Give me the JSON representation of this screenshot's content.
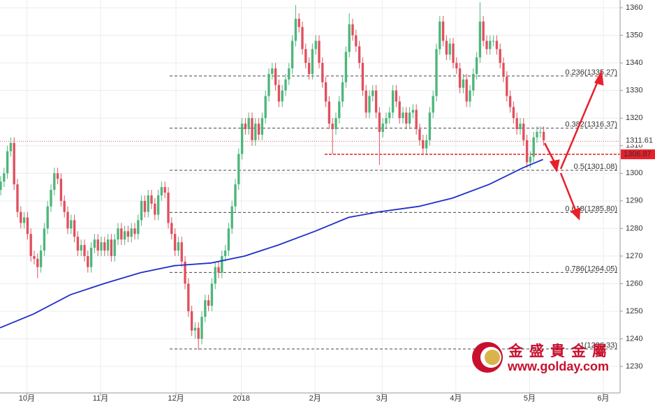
{
  "chart_data": {
    "type": "candlestick",
    "up_color": "#4db67a",
    "down_color": "#e0505e",
    "xlim": [
      0,
      185
    ],
    "xticks": [
      {
        "value": 8,
        "label": "10月"
      },
      {
        "value": 30,
        "label": "11月"
      },
      {
        "value": 52.5,
        "label": "12月"
      },
      {
        "value": 72,
        "label": "2018"
      },
      {
        "value": 94,
        "label": "2月"
      },
      {
        "value": 114,
        "label": "3月"
      },
      {
        "value": 136,
        "label": "4月"
      },
      {
        "value": 158,
        "label": "5月"
      },
      {
        "value": 180,
        "label": "6月"
      }
    ],
    "ylim": [
      1220.4,
      1362.8
    ],
    "yticks": [
      1230,
      1240,
      1250,
      1260,
      1270,
      1280,
      1290,
      1300,
      1310,
      1320,
      1330,
      1340,
      1350,
      1360
    ],
    "grid": true,
    "open": [
      1294,
      1297,
      1300,
      1308,
      1311,
      1296,
      1286,
      1282,
      1284,
      1278,
      1270,
      1269,
      1266,
      1272,
      1280,
      1288,
      1294,
      1300,
      1298,
      1290,
      1286,
      1280,
      1283,
      1277,
      1272,
      1274,
      1270,
      1266,
      1273,
      1276,
      1272,
      1275,
      1272,
      1276,
      1270,
      1276,
      1280,
      1276,
      1279,
      1277,
      1280,
      1278,
      1283,
      1290,
      1286,
      1292,
      1289,
      1285,
      1292,
      1295,
      1293,
      1282,
      1278,
      1272,
      1275,
      1268,
      1260,
      1250,
      1243,
      1244,
      1240,
      1248,
      1254,
      1252,
      1260,
      1266,
      1264,
      1270,
      1272,
      1280,
      1288,
      1296,
      1307,
      1318,
      1316,
      1320,
      1312,
      1318,
      1314,
      1320,
      1328,
      1336,
      1338,
      1332,
      1326,
      1330,
      1334,
      1338,
      1348,
      1356,
      1353,
      1345,
      1340,
      1336,
      1345,
      1348,
      1340,
      1333,
      1326,
      1318,
      1316,
      1320,
      1326,
      1333,
      1344,
      1354,
      1350,
      1346,
      1340,
      1330,
      1322,
      1328,
      1330,
      1322,
      1315,
      1318,
      1320,
      1322,
      1330,
      1326,
      1320,
      1322,
      1318,
      1322,
      1323,
      1316,
      1312,
      1309,
      1312,
      1322,
      1328,
      1345,
      1355,
      1348,
      1343,
      1347,
      1340,
      1338,
      1331,
      1334,
      1326,
      1330,
      1336,
      1342,
      1355,
      1348,
      1345,
      1348,
      1348,
      1345,
      1340,
      1335,
      1328,
      1324,
      1320,
      1316,
      1318,
      1312,
      1304,
      1306,
      1313,
      1315,
      1315
    ],
    "high": [
      1299,
      1302,
      1310,
      1313,
      1313,
      1298,
      1288,
      1286,
      1286,
      1280,
      1272,
      1271,
      1274,
      1282,
      1290,
      1296,
      1302,
      1302,
      1300,
      1292,
      1288,
      1285,
      1285,
      1279,
      1276,
      1276,
      1272,
      1275,
      1278,
      1278,
      1277,
      1277,
      1278,
      1278,
      1278,
      1282,
      1282,
      1281,
      1281,
      1282,
      1282,
      1285,
      1292,
      1292,
      1294,
      1294,
      1291,
      1294,
      1297,
      1297,
      1295,
      1284,
      1280,
      1277,
      1277,
      1270,
      1262,
      1252,
      1246,
      1246,
      1250,
      1256,
      1256,
      1262,
      1268,
      1268,
      1272,
      1274,
      1282,
      1290,
      1298,
      1309,
      1320,
      1320,
      1322,
      1322,
      1320,
      1320,
      1322,
      1330,
      1338,
      1340,
      1340,
      1334,
      1332,
      1336,
      1340,
      1350,
      1361,
      1358,
      1355,
      1347,
      1342,
      1347,
      1350,
      1350,
      1342,
      1335,
      1328,
      1320,
      1322,
      1328,
      1335,
      1346,
      1358,
      1356,
      1352,
      1348,
      1342,
      1332,
      1330,
      1332,
      1332,
      1324,
      1320,
      1322,
      1324,
      1332,
      1332,
      1328,
      1324,
      1324,
      1324,
      1325,
      1325,
      1318,
      1314,
      1314,
      1324,
      1330,
      1347,
      1357,
      1357,
      1350,
      1349,
      1349,
      1342,
      1340,
      1336,
      1336,
      1332,
      1338,
      1344,
      1362,
      1357,
      1350,
      1350,
      1350,
      1350,
      1347,
      1342,
      1337,
      1330,
      1326,
      1322,
      1320,
      1320,
      1314,
      1308,
      1315,
      1317,
      1317,
      1317
    ],
    "low": [
      1292,
      1295,
      1298,
      1306,
      1294,
      1284,
      1280,
      1280,
      1276,
      1268,
      1267,
      1262,
      1264,
      1270,
      1278,
      1286,
      1292,
      1296,
      1288,
      1284,
      1278,
      1278,
      1275,
      1270,
      1270,
      1268,
      1264,
      1264,
      1271,
      1270,
      1270,
      1270,
      1270,
      1268,
      1268,
      1274,
      1274,
      1274,
      1275,
      1275,
      1276,
      1276,
      1281,
      1284,
      1284,
      1287,
      1283,
      1283,
      1290,
      1291,
      1280,
      1276,
      1270,
      1270,
      1266,
      1258,
      1248,
      1241,
      1240,
      1236,
      1238,
      1246,
      1250,
      1250,
      1258,
      1262,
      1262,
      1268,
      1270,
      1278,
      1286,
      1294,
      1305,
      1314,
      1314,
      1310,
      1310,
      1312,
      1312,
      1318,
      1326,
      1334,
      1330,
      1324,
      1324,
      1328,
      1332,
      1336,
      1346,
      1351,
      1343,
      1338,
      1334,
      1334,
      1343,
      1338,
      1331,
      1324,
      1316,
      1307,
      1314,
      1318,
      1324,
      1331,
      1342,
      1348,
      1344,
      1338,
      1328,
      1320,
      1320,
      1326,
      1320,
      1303,
      1313,
      1316,
      1318,
      1320,
      1324,
      1318,
      1318,
      1316,
      1316,
      1320,
      1314,
      1310,
      1307,
      1307,
      1310,
      1320,
      1326,
      1343,
      1346,
      1341,
      1341,
      1338,
      1336,
      1329,
      1329,
      1324,
      1324,
      1328,
      1334,
      1340,
      1346,
      1343,
      1343,
      1346,
      1343,
      1338,
      1333,
      1326,
      1322,
      1318,
      1314,
      1314,
      1310,
      1302,
      1302,
      1304,
      1311,
      1313,
      1310
    ],
    "close": [
      1297,
      1300,
      1308,
      1311,
      1296,
      1286,
      1282,
      1284,
      1278,
      1270,
      1269,
      1266,
      1272,
      1280,
      1288,
      1294,
      1300,
      1298,
      1290,
      1286,
      1280,
      1283,
      1277,
      1272,
      1274,
      1270,
      1266,
      1273,
      1276,
      1272,
      1275,
      1272,
      1276,
      1270,
      1276,
      1280,
      1276,
      1279,
      1277,
      1280,
      1278,
      1283,
      1290,
      1286,
      1292,
      1289,
      1285,
      1292,
      1295,
      1293,
      1282,
      1278,
      1272,
      1275,
      1268,
      1260,
      1250,
      1243,
      1244,
      1240,
      1248,
      1254,
      1252,
      1260,
      1266,
      1264,
      1270,
      1272,
      1280,
      1288,
      1296,
      1307,
      1318,
      1316,
      1320,
      1312,
      1318,
      1314,
      1320,
      1328,
      1336,
      1338,
      1332,
      1326,
      1330,
      1334,
      1338,
      1348,
      1356,
      1353,
      1345,
      1340,
      1336,
      1345,
      1348,
      1340,
      1333,
      1326,
      1318,
      1316,
      1320,
      1326,
      1333,
      1344,
      1354,
      1350,
      1346,
      1340,
      1330,
      1322,
      1328,
      1330,
      1322,
      1315,
      1318,
      1320,
      1322,
      1330,
      1326,
      1320,
      1322,
      1318,
      1322,
      1323,
      1316,
      1312,
      1309,
      1312,
      1322,
      1328,
      1345,
      1355,
      1348,
      1343,
      1347,
      1340,
      1338,
      1331,
      1334,
      1326,
      1330,
      1336,
      1342,
      1355,
      1348,
      1345,
      1348,
      1348,
      1345,
      1340,
      1335,
      1328,
      1324,
      1320,
      1316,
      1318,
      1312,
      1304,
      1306,
      1313,
      1315,
      1315,
      1312
    ],
    "ma": {
      "color": "#1f2fc8",
      "x": [
        0,
        10,
        21,
        31,
        42,
        52,
        63,
        73,
        83,
        94,
        104,
        113,
        125,
        135,
        146,
        156,
        162
      ],
      "values": [
        1244,
        1249,
        1256,
        1260,
        1264,
        1266.5,
        1267.5,
        1270,
        1274,
        1279,
        1284,
        1286,
        1288,
        1291,
        1296,
        1302,
        1305
      ]
    },
    "fib_levels": [
      {
        "value": 1335.27,
        "label": "0.236(1335.27)"
      },
      {
        "value": 1316.37,
        "label": "0.382(1316.37)"
      },
      {
        "value": 1301.08,
        "label": "0.5(1301.08)"
      },
      {
        "value": 1285.8,
        "label": "0.618(1285.80)"
      },
      {
        "value": 1264.05,
        "label": "0.786(1264.05)"
      },
      {
        "value": 1236.33,
        "label": "1(1236.33)"
      }
    ],
    "price_lines": [
      {
        "value": 1311.61,
        "color": "#e0505e",
        "boxed": false
      },
      {
        "value": 1306.87,
        "color": "#e8202a",
        "boxed": true
      }
    ],
    "logo": {
      "name": "金盛貴金屬",
      "url": "www.golday.com"
    }
  }
}
